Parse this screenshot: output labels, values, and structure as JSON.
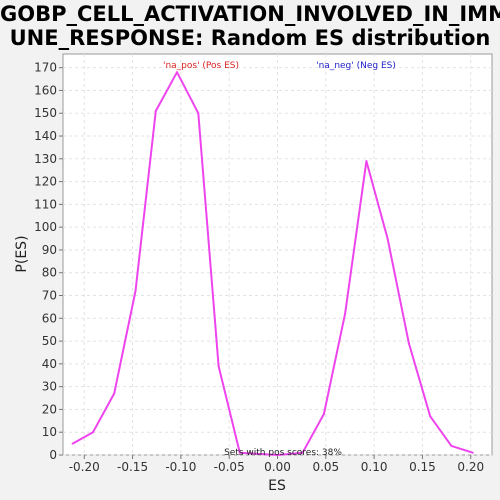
{
  "chart_data": {
    "type": "line",
    "title_line1": "GOBP_CELL_ACTIVATION_INVOLVED_IN_IMM",
    "title_line2": "UNE_RESPONSE: Random ES distribution",
    "xlabel": "ES",
    "ylabel": "P(ES)",
    "xlim": [
      -0.222,
      0.222
    ],
    "ylim": [
      0,
      176
    ],
    "x_ticks": [
      "-0.20",
      "-0.15",
      "-0.10",
      "-0.05",
      "0.00",
      "0.05",
      "0.10",
      "0.15",
      "0.20"
    ],
    "y_ticks": [
      "0",
      "10",
      "20",
      "30",
      "40",
      "50",
      "60",
      "70",
      "80",
      "90",
      "100",
      "110",
      "120",
      "130",
      "140",
      "150",
      "160",
      "170"
    ],
    "grid": true,
    "series": [
      {
        "color": "#ee44ee",
        "x": [
          -0.212,
          -0.191,
          -0.169,
          -0.147,
          -0.126,
          -0.104,
          -0.082,
          -0.061,
          -0.039,
          0.0,
          0.026,
          0.048,
          0.07,
          0.092,
          0.114,
          0.136,
          0.158,
          0.18,
          0.202
        ],
        "y": [
          5,
          10,
          27,
          72,
          151,
          168,
          150,
          39,
          1,
          0,
          1,
          18,
          62,
          129,
          95,
          49,
          17,
          4,
          1
        ]
      }
    ],
    "legend": [
      {
        "label": "'na_pos' (Pos ES)",
        "color": "#dd2222"
      },
      {
        "label": "'na_neg' (Neg ES)",
        "color": "#2222cc"
      }
    ],
    "annotation": "Sets with pos scores: 38%"
  }
}
